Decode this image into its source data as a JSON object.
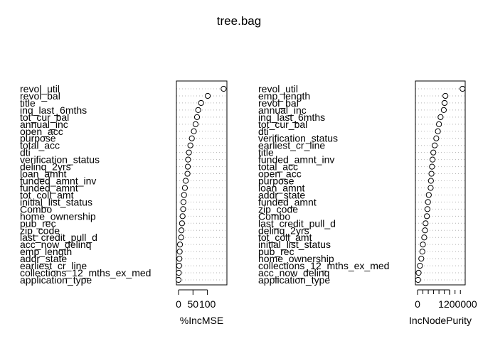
{
  "chart_data": {
    "type": "scatter",
    "title": "tree.bag",
    "panels": [
      {
        "xlabel": "%IncMSE",
        "xlim": [
          0,
          160
        ],
        "xticks": [
          0,
          50,
          100
        ],
        "tick_labels": [
          "0",
          "50",
          "100"
        ],
        "labels": [
          "revol_util",
          "revol_bal",
          "title",
          "inq_last_6mths",
          "tot_cur_bal",
          "annual_inc",
          "open_acc",
          "purpose",
          "total_acc",
          "dti",
          "verification_status",
          "delinq_2yrs",
          "loan_amnt",
          "funded_amnt_inv",
          "funded_amnt",
          "tot_coll_amt",
          "initial_list_status",
          "Combo",
          "home_ownership",
          "pub_rec",
          "zip_code",
          "last_credit_pull_d",
          "acc_now_delinq",
          "emp_length",
          "addr_state",
          "earliest_cr_line",
          "collections_12_mths_ex_med",
          "application_type"
        ],
        "values": [
          156,
          101,
          78,
          68,
          64,
          59,
          53,
          46,
          41,
          36,
          33,
          32,
          31,
          25,
          22,
          19,
          17,
          16,
          14,
          12,
          10,
          9,
          5,
          4,
          3,
          2,
          1,
          0
        ]
      },
      {
        "xlabel": "IncNodePurity",
        "xlim": [
          0,
          1700000
        ],
        "xticks": [
          0,
          1200000
        ],
        "tick_labels": [
          "0",
          "1200000"
        ],
        "labels": [
          "revol_util",
          "emp_length",
          "revol_bal",
          "annual_inc",
          "inq_last_6mths",
          "tot_cur_bal",
          "dti",
          "verification_status",
          "earliest_cr_line",
          "title",
          "funded_amnt_inv",
          "total_acc",
          "open_acc",
          "purpose",
          "loan_amnt",
          "addr_state",
          "funded_amnt",
          "zip_code",
          "Combo",
          "last_credit_pull_d",
          "delinq_2yrs",
          "tot_coll_amt",
          "initial_list_status",
          "pub_rec",
          "home_ownership",
          "collections_12_mths_ex_med",
          "acc_now_delinq",
          "application_type"
        ],
        "values": [
          1680000,
          1040000,
          1010000,
          980000,
          860000,
          800000,
          760000,
          700000,
          640000,
          590000,
          560000,
          540000,
          520000,
          500000,
          490000,
          420000,
          390000,
          370000,
          350000,
          300000,
          280000,
          250000,
          200000,
          180000,
          140000,
          90000,
          40000,
          20000
        ]
      }
    ]
  }
}
